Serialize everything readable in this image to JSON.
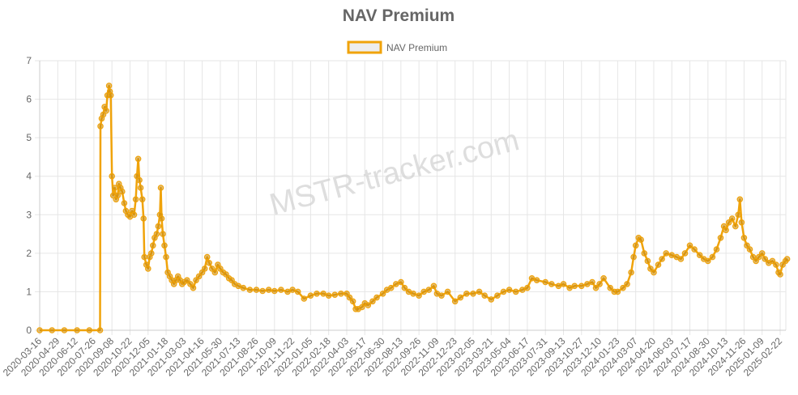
{
  "colors": {
    "series": "#f0a30a",
    "point_fill": "#c98a10",
    "grid": "#e6e6e6",
    "axis": "#cccccc",
    "text": "#666666"
  },
  "watermark": "MSTR-tracker.com",
  "chart_data": {
    "type": "line",
    "title": "NAV Premium",
    "legend_position": "top",
    "grid": true,
    "ylim": [
      0,
      7
    ],
    "y_ticks": [
      "0",
      "1",
      "2",
      "3",
      "4",
      "5",
      "6",
      "7"
    ],
    "x_tick_labels": [
      "2020-03-16",
      "2020-04-29",
      "2020-06-12",
      "2020-07-26",
      "2020-09-08",
      "2020-10-22",
      "2020-12-05",
      "2021-01-18",
      "2021-03-03",
      "2021-04-16",
      "2021-05-30",
      "2021-07-13",
      "2021-08-26",
      "2021-10-09",
      "2021-11-22",
      "2022-01-05",
      "2022-02-18",
      "2022-04-03",
      "2022-05-17",
      "2022-06-30",
      "2022-08-13",
      "2022-09-26",
      "2022-11-09",
      "2022-12-23",
      "2023-02-05",
      "2023-03-21",
      "2023-05-04",
      "2023-06-17",
      "2023-07-31",
      "2023-09-13",
      "2023-10-27",
      "2023-12-10",
      "2024-01-23",
      "2024-03-07",
      "2024-04-20",
      "2024-06-03",
      "2024-07-17",
      "2024-08-30",
      "2024-10-13",
      "2024-11-26",
      "2025-01-09",
      "2025-02-22"
    ],
    "series": [
      {
        "name": "NAV Premium",
        "points": [
          [
            "2020-03-16",
            0
          ],
          [
            "2020-04-15",
            0
          ],
          [
            "2020-05-15",
            0
          ],
          [
            "2020-06-15",
            0
          ],
          [
            "2020-07-15",
            0
          ],
          [
            "2020-08-10",
            0
          ],
          [
            "2020-08-11",
            5.3
          ],
          [
            "2020-08-14",
            5.5
          ],
          [
            "2020-08-18",
            5.6
          ],
          [
            "2020-08-21",
            5.8
          ],
          [
            "2020-08-25",
            5.7
          ],
          [
            "2020-08-28",
            6.1
          ],
          [
            "2020-09-01",
            6.35
          ],
          [
            "2020-09-03",
            6.2
          ],
          [
            "2020-09-05",
            6.1
          ],
          [
            "2020-09-08",
            4.0
          ],
          [
            "2020-09-11",
            3.5
          ],
          [
            "2020-09-15",
            3.7
          ],
          [
            "2020-09-18",
            3.4
          ],
          [
            "2020-09-22",
            3.5
          ],
          [
            "2020-09-25",
            3.8
          ],
          [
            "2020-09-29",
            3.7
          ],
          [
            "2020-10-03",
            3.6
          ],
          [
            "2020-10-08",
            3.3
          ],
          [
            "2020-10-12",
            3.1
          ],
          [
            "2020-10-17",
            3.0
          ],
          [
            "2020-10-22",
            2.95
          ],
          [
            "2020-10-27",
            3.1
          ],
          [
            "2020-11-01",
            3.0
          ],
          [
            "2020-11-05",
            3.4
          ],
          [
            "2020-11-08",
            4.0
          ],
          [
            "2020-11-11",
            4.45
          ],
          [
            "2020-11-14",
            3.9
          ],
          [
            "2020-11-17",
            3.7
          ],
          [
            "2020-11-21",
            3.4
          ],
          [
            "2020-11-24",
            2.9
          ],
          [
            "2020-11-26",
            1.9
          ],
          [
            "2020-12-01",
            1.7
          ],
          [
            "2020-12-05",
            1.6
          ],
          [
            "2020-12-09",
            1.9
          ],
          [
            "2020-12-13",
            2.0
          ],
          [
            "2020-12-17",
            2.2
          ],
          [
            "2020-12-21",
            2.4
          ],
          [
            "2020-12-26",
            2.5
          ],
          [
            "2020-12-30",
            2.7
          ],
          [
            "2021-01-03",
            3.0
          ],
          [
            "2021-01-05",
            3.7
          ],
          [
            "2021-01-07",
            2.9
          ],
          [
            "2021-01-10",
            2.5
          ],
          [
            "2021-01-14",
            2.2
          ],
          [
            "2021-01-18",
            1.9
          ],
          [
            "2021-01-22",
            1.5
          ],
          [
            "2021-01-27",
            1.4
          ],
          [
            "2021-02-01",
            1.3
          ],
          [
            "2021-02-06",
            1.2
          ],
          [
            "2021-02-11",
            1.3
          ],
          [
            "2021-02-16",
            1.4
          ],
          [
            "2021-02-21",
            1.3
          ],
          [
            "2021-02-26",
            1.2
          ],
          [
            "2021-03-03",
            1.25
          ],
          [
            "2021-03-10",
            1.3
          ],
          [
            "2021-03-18",
            1.2
          ],
          [
            "2021-03-25",
            1.1
          ],
          [
            "2021-04-01",
            1.3
          ],
          [
            "2021-04-08",
            1.4
          ],
          [
            "2021-04-16",
            1.5
          ],
          [
            "2021-04-22",
            1.6
          ],
          [
            "2021-04-28",
            1.9
          ],
          [
            "2021-05-03",
            1.75
          ],
          [
            "2021-05-10",
            1.6
          ],
          [
            "2021-05-17",
            1.5
          ],
          [
            "2021-05-24",
            1.7
          ],
          [
            "2021-05-30",
            1.6
          ],
          [
            "2021-06-06",
            1.5
          ],
          [
            "2021-06-13",
            1.45
          ],
          [
            "2021-06-20",
            1.35
          ],
          [
            "2021-06-27",
            1.3
          ],
          [
            "2021-07-04",
            1.2
          ],
          [
            "2021-07-13",
            1.15
          ],
          [
            "2021-07-25",
            1.1
          ],
          [
            "2021-08-10",
            1.05
          ],
          [
            "2021-08-26",
            1.05
          ],
          [
            "2021-09-10",
            1.02
          ],
          [
            "2021-09-25",
            1.05
          ],
          [
            "2021-10-09",
            1.02
          ],
          [
            "2021-10-25",
            1.05
          ],
          [
            "2021-11-10",
            1.0
          ],
          [
            "2021-11-22",
            1.05
          ],
          [
            "2021-12-05",
            1.0
          ],
          [
            "2021-12-20",
            0.82
          ],
          [
            "2022-01-05",
            0.9
          ],
          [
            "2022-01-20",
            0.95
          ],
          [
            "2022-02-05",
            0.95
          ],
          [
            "2022-02-18",
            0.9
          ],
          [
            "2022-03-05",
            0.92
          ],
          [
            "2022-03-20",
            0.95
          ],
          [
            "2022-04-03",
            0.95
          ],
          [
            "2022-04-10",
            0.85
          ],
          [
            "2022-04-18",
            0.75
          ],
          [
            "2022-04-25",
            0.55
          ],
          [
            "2022-05-01",
            0.55
          ],
          [
            "2022-05-10",
            0.6
          ],
          [
            "2022-05-17",
            0.7
          ],
          [
            "2022-05-25",
            0.65
          ],
          [
            "2022-06-05",
            0.75
          ],
          [
            "2022-06-15",
            0.85
          ],
          [
            "2022-06-30",
            0.95
          ],
          [
            "2022-07-10",
            1.05
          ],
          [
            "2022-07-20",
            1.1
          ],
          [
            "2022-08-01",
            1.2
          ],
          [
            "2022-08-13",
            1.25
          ],
          [
            "2022-08-22",
            1.1
          ],
          [
            "2022-09-01",
            1.0
          ],
          [
            "2022-09-12",
            0.95
          ],
          [
            "2022-09-26",
            0.9
          ],
          [
            "2022-10-08",
            1.0
          ],
          [
            "2022-10-20",
            1.05
          ],
          [
            "2022-11-01",
            1.15
          ],
          [
            "2022-11-09",
            0.95
          ],
          [
            "2022-11-20",
            0.9
          ],
          [
            "2022-12-05",
            1.0
          ],
          [
            "2022-12-23",
            0.75
          ],
          [
            "2023-01-05",
            0.85
          ],
          [
            "2023-01-20",
            0.95
          ],
          [
            "2023-02-05",
            0.95
          ],
          [
            "2023-02-20",
            1.0
          ],
          [
            "2023-03-05",
            0.9
          ],
          [
            "2023-03-21",
            0.8
          ],
          [
            "2023-04-05",
            0.9
          ],
          [
            "2023-04-20",
            1.0
          ],
          [
            "2023-05-04",
            1.05
          ],
          [
            "2023-05-20",
            1.0
          ],
          [
            "2023-06-05",
            1.05
          ],
          [
            "2023-06-17",
            1.1
          ],
          [
            "2023-06-28",
            1.35
          ],
          [
            "2023-07-10",
            1.3
          ],
          [
            "2023-07-31",
            1.25
          ],
          [
            "2023-08-15",
            1.2
          ],
          [
            "2023-09-01",
            1.15
          ],
          [
            "2023-09-13",
            1.2
          ],
          [
            "2023-09-28",
            1.1
          ],
          [
            "2023-10-10",
            1.15
          ],
          [
            "2023-10-27",
            1.15
          ],
          [
            "2023-11-10",
            1.2
          ],
          [
            "2023-11-22",
            1.25
          ],
          [
            "2023-12-01",
            1.1
          ],
          [
            "2023-12-10",
            1.2
          ],
          [
            "2023-12-20",
            1.35
          ],
          [
            "2024-01-05",
            1.1
          ],
          [
            "2024-01-15",
            1.0
          ],
          [
            "2024-01-23",
            1.0
          ],
          [
            "2024-02-05",
            1.1
          ],
          [
            "2024-02-15",
            1.2
          ],
          [
            "2024-02-25",
            1.5
          ],
          [
            "2024-03-02",
            1.9
          ],
          [
            "2024-03-07",
            2.2
          ],
          [
            "2024-03-14",
            2.4
          ],
          [
            "2024-03-20",
            2.35
          ],
          [
            "2024-03-28",
            2.0
          ],
          [
            "2024-04-05",
            1.8
          ],
          [
            "2024-04-12",
            1.6
          ],
          [
            "2024-04-20",
            1.5
          ],
          [
            "2024-05-01",
            1.7
          ],
          [
            "2024-05-10",
            1.85
          ],
          [
            "2024-05-20",
            2.0
          ],
          [
            "2024-06-03",
            1.95
          ],
          [
            "2024-06-15",
            1.9
          ],
          [
            "2024-06-25",
            1.85
          ],
          [
            "2024-07-05",
            2.0
          ],
          [
            "2024-07-17",
            2.2
          ],
          [
            "2024-07-28",
            2.1
          ],
          [
            "2024-08-10",
            1.95
          ],
          [
            "2024-08-20",
            1.85
          ],
          [
            "2024-08-30",
            1.8
          ],
          [
            "2024-09-10",
            1.9
          ],
          [
            "2024-09-20",
            2.1
          ],
          [
            "2024-09-30",
            2.4
          ],
          [
            "2024-10-08",
            2.7
          ],
          [
            "2024-10-13",
            2.6
          ],
          [
            "2024-10-20",
            2.8
          ],
          [
            "2024-10-28",
            2.9
          ],
          [
            "2024-11-05",
            2.7
          ],
          [
            "2024-11-12",
            3.0
          ],
          [
            "2024-11-16",
            3.4
          ],
          [
            "2024-11-20",
            2.8
          ],
          [
            "2024-11-26",
            2.4
          ],
          [
            "2024-12-03",
            2.2
          ],
          [
            "2024-12-10",
            2.1
          ],
          [
            "2024-12-18",
            1.9
          ],
          [
            "2024-12-25",
            1.8
          ],
          [
            "2025-01-01",
            1.9
          ],
          [
            "2025-01-09",
            2.0
          ],
          [
            "2025-01-16",
            1.85
          ],
          [
            "2025-01-25",
            1.75
          ],
          [
            "2025-02-03",
            1.8
          ],
          [
            "2025-02-12",
            1.7
          ],
          [
            "2025-02-18",
            1.5
          ],
          [
            "2025-02-22",
            1.45
          ],
          [
            "2025-02-28",
            1.7
          ],
          [
            "2025-03-07",
            1.8
          ],
          [
            "2025-03-11",
            1.85
          ]
        ]
      }
    ]
  }
}
